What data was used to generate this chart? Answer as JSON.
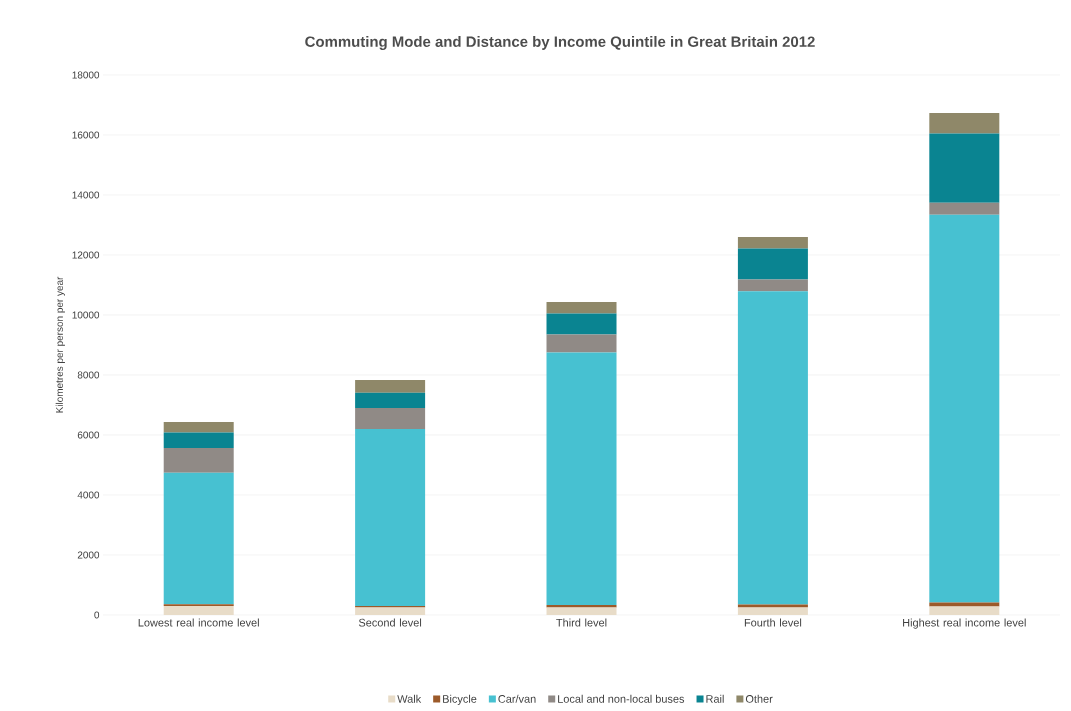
{
  "chart_data": {
    "type": "bar",
    "stacked": true,
    "title": "Commuting Mode and Distance by Income Quintile in Great Britain 2012",
    "ylabel": "Kilometres per person per year",
    "categories": [
      "Lowest real income level",
      "Second level",
      "Third level",
      "Fourth level",
      "Highest real income level"
    ],
    "series": [
      {
        "name": "Walk",
        "color": "#e8dcc8",
        "values": [
          300,
          250,
          250,
          250,
          280
        ]
      },
      {
        "name": "Bicycle",
        "color": "#9c5a2a",
        "values": [
          60,
          50,
          80,
          100,
          140
        ]
      },
      {
        "name": "Car/van",
        "color": "#47c1d1",
        "values": [
          4380,
          5900,
          8420,
          10440,
          12920
        ]
      },
      {
        "name": "Local and non-local buses",
        "color": "#908a86",
        "values": [
          830,
          700,
          600,
          390,
          400
        ]
      },
      {
        "name": "Rail",
        "color": "#0a8491",
        "values": [
          510,
          510,
          700,
          1040,
          2310
        ]
      },
      {
        "name": "Other",
        "color": "#8f8869",
        "values": [
          350,
          420,
          380,
          380,
          680
        ]
      }
    ],
    "ylim": [
      0,
      18000
    ],
    "yticks": [
      0,
      2000,
      4000,
      6000,
      8000,
      10000,
      12000,
      14000,
      16000,
      18000
    ],
    "grid": "y",
    "legend": "bottom"
  }
}
